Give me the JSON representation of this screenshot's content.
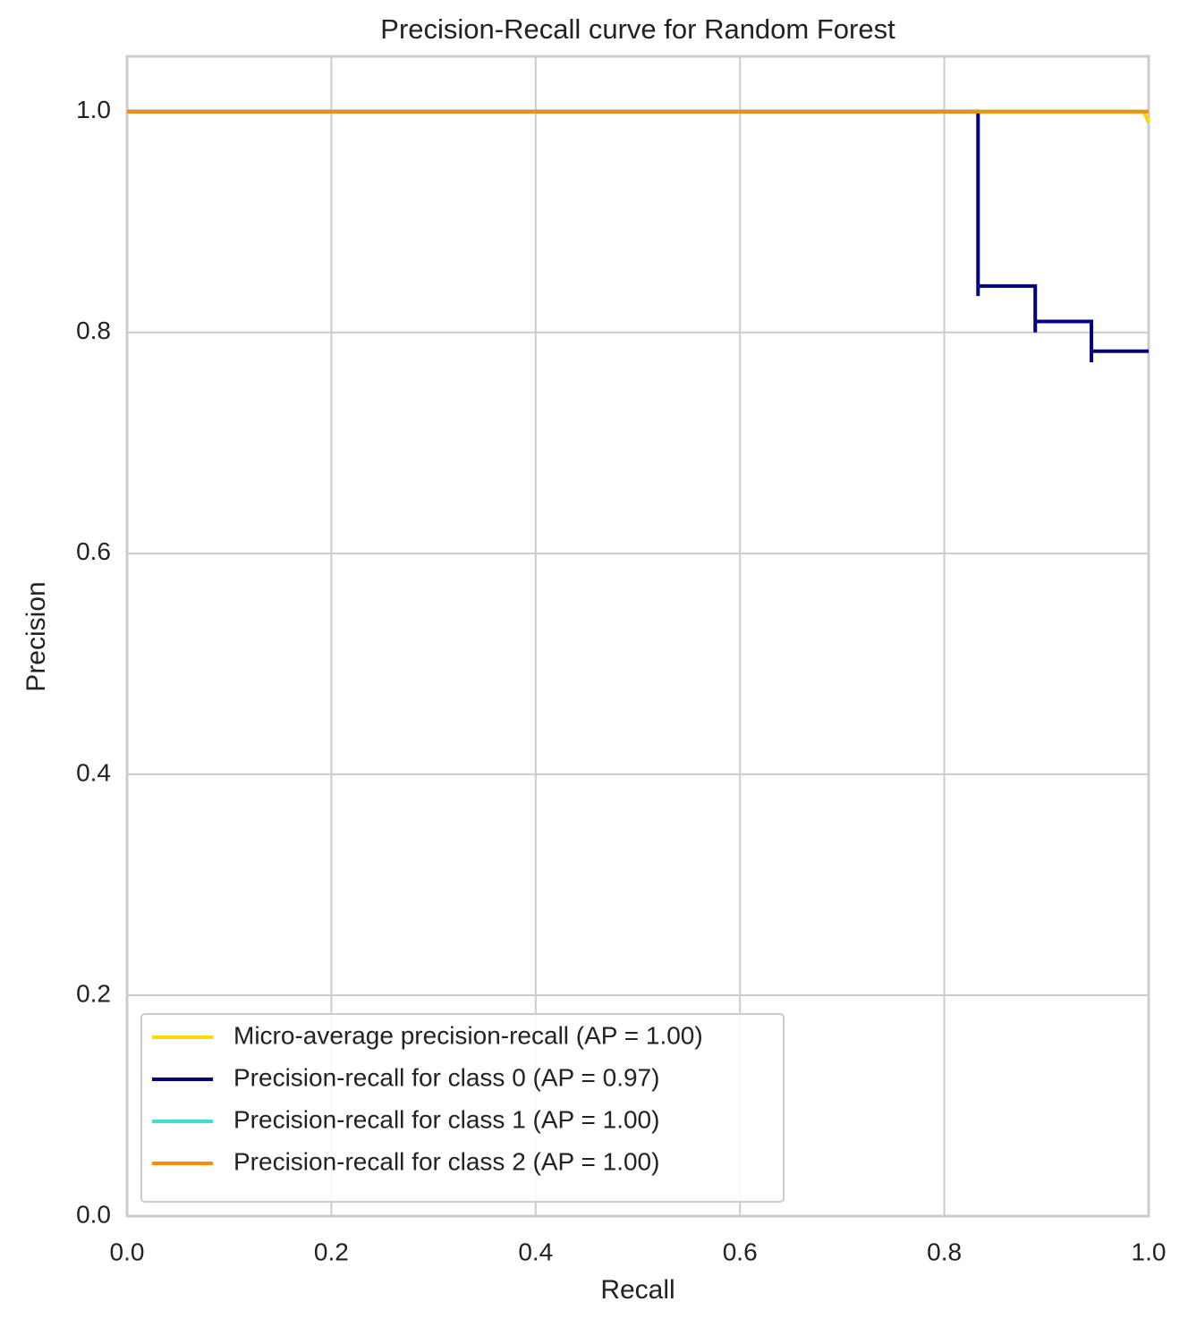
{
  "chart_data": {
    "type": "line",
    "title": "Precision-Recall curve for Random Forest",
    "x_label": "Recall",
    "y_label": "Precision",
    "xlim": [
      0,
      1
    ],
    "ylim": [
      0,
      1.05
    ],
    "xticks": [
      {
        "value": 0,
        "label": "0.0"
      },
      0.2,
      0.4,
      0.6,
      0.8,
      {
        "value": 1,
        "label": "1.0"
      }
    ],
    "yticks": [
      {
        "value": 0,
        "label": "0.0"
      },
      0.2,
      0.4,
      0.6,
      0.8,
      {
        "value": 1,
        "label": "1.0"
      }
    ],
    "grid": true,
    "legend": "lower left",
    "series": [
      {
        "name": "Micro-average precision-recall (AP = 1.00)",
        "color": "#ffd700",
        "x": [
          0,
          0.995,
          1.0
        ],
        "values": [
          1,
          1,
          0.99
        ]
      },
      {
        "name": "Precision-recall for class 0 (AP = 0.97)",
        "color": "#000080",
        "x": [
          0,
          0.833,
          0.833,
          0.833,
          0.889,
          0.889,
          0.889,
          0.944,
          0.944,
          0.944,
          1.0
        ],
        "values": [
          1,
          1,
          0.833,
          0.842,
          0.842,
          0.8,
          0.81,
          0.81,
          0.773,
          0.783,
          0.783
        ]
      },
      {
        "name": "Precision-recall for class 1 (AP = 1.00)",
        "color": "#40e0d0",
        "x": [
          0,
          1
        ],
        "values": [
          1,
          1
        ]
      },
      {
        "name": "Precision-recall for class 2 (AP = 1.00)",
        "color": "#ff8c00",
        "x": [
          0,
          1
        ],
        "values": [
          1,
          1
        ]
      }
    ]
  }
}
